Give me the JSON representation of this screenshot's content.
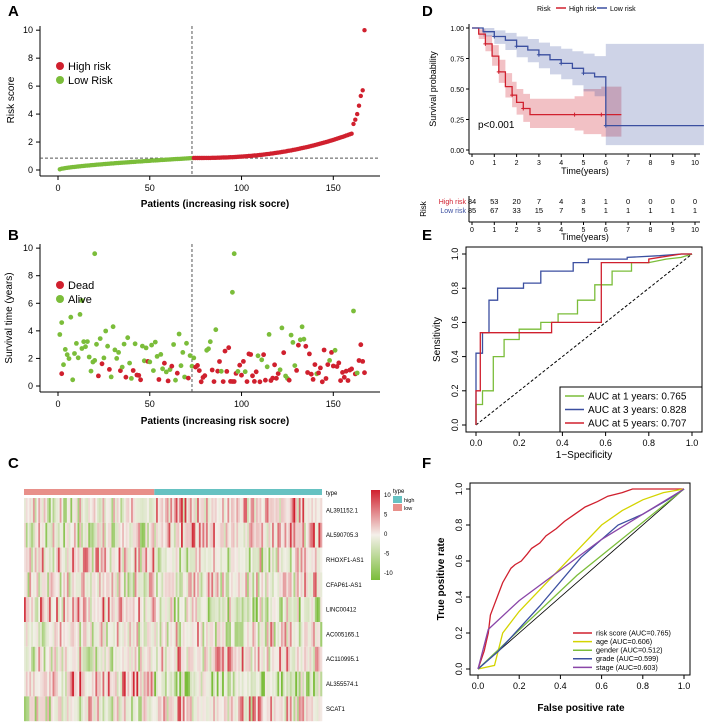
{
  "panel_labels": [
    "A",
    "B",
    "C",
    "D",
    "E",
    "F"
  ],
  "chart_data": [
    {
      "id": "A",
      "type": "scatter",
      "xlabel": "Patients (increasing risk socre)",
      "ylabel": "Risk score",
      "xlim": [
        0,
        170
      ],
      "ylim": [
        0,
        10.3
      ],
      "xticks": [
        0,
        50,
        100,
        150
      ],
      "yticks": [
        0,
        2,
        4,
        6,
        8,
        10
      ],
      "cutoff_x": 73,
      "cutoff_y": 0.85,
      "legend": [
        {
          "name": "High risk",
          "color": "#d0202e"
        },
        {
          "name": "Low Risk",
          "color": "#7bbd3a"
        }
      ],
      "low_count": 73,
      "high_count": 94,
      "low_range": [
        0.05,
        0.85
      ],
      "high_range": [
        0.86,
        2.6
      ],
      "top_values": [
        3.3,
        3.6,
        4.0,
        4.6,
        5.3,
        5.7,
        10.0
      ]
    },
    {
      "id": "B",
      "type": "scatter",
      "xlabel": "Patients (increasing risk socre)",
      "ylabel": "Survival time (years)",
      "xlim": [
        0,
        170
      ],
      "ylim": [
        0,
        10.3
      ],
      "xticks": [
        0,
        50,
        100,
        150
      ],
      "yticks": [
        0,
        2,
        4,
        6,
        8,
        10
      ],
      "cutoff_x": 73,
      "legend": [
        {
          "name": "Dead",
          "color": "#d0202e"
        },
        {
          "name": "Alive",
          "color": "#7bbd3a"
        }
      ],
      "highlights": [
        [
          20,
          9.6
        ],
        [
          96,
          9.6
        ],
        [
          95,
          6.8
        ],
        [
          13,
          6.2
        ],
        [
          2,
          4.6
        ]
      ]
    },
    {
      "id": "C",
      "type": "heatmap",
      "genes": [
        "AL391152.1",
        "AL590705.3",
        "RHOXF1-AS1",
        "CFAP61-AS1",
        "LINC00412",
        "AC005165.1",
        "AC110995.1",
        "AL355574.1",
        "SCAT1"
      ],
      "n_low": 73,
      "n_high": 94,
      "scale_ticks": [
        "10",
        "5",
        "0",
        "-5",
        "-10"
      ],
      "annotation_title": "type",
      "legend_title": "type",
      "legend": [
        {
          "name": "high",
          "color": "#66c2c2"
        },
        {
          "name": "low",
          "color": "#e8908a"
        }
      ],
      "colors": {
        "high": "#d0202e",
        "mid": "#f4f0ea",
        "low": "#7bbd3a"
      }
    },
    {
      "id": "D",
      "type": "line",
      "xlabel": "Time(years)",
      "ylabel": "Survival probability",
      "xlim": [
        0,
        10.4
      ],
      "ylim": [
        0,
        1.0
      ],
      "xticks": [
        0,
        1,
        2,
        3,
        4,
        5,
        6,
        7,
        8,
        9,
        10
      ],
      "yticks": [
        "0.00",
        "0.25",
        "0.50",
        "0.75",
        "1.00"
      ],
      "legend_title": "Risk",
      "pvalue": "p<0.001",
      "series": [
        {
          "name": "High risk",
          "color": "#d0202e",
          "x": [
            0,
            0.3,
            0.6,
            0.9,
            1.2,
            1.5,
            1.8,
            2.0,
            2.3,
            2.6,
            4.6,
            5.0,
            5.8,
            6.7
          ],
          "y": [
            1.0,
            0.95,
            0.87,
            0.77,
            0.64,
            0.52,
            0.45,
            0.39,
            0.34,
            0.29,
            0.29,
            0.29,
            0.29,
            0.29
          ],
          "lower": [
            1.0,
            0.91,
            0.81,
            0.69,
            0.55,
            0.43,
            0.35,
            0.29,
            0.23,
            0.18,
            0.16,
            0.13,
            0.11,
            0.11
          ],
          "upper": [
            1.0,
            0.99,
            0.94,
            0.86,
            0.74,
            0.63,
            0.56,
            0.5,
            0.46,
            0.42,
            0.44,
            0.5,
            0.52,
            0.52
          ]
        },
        {
          "name": "Low risk",
          "color": "#3b4fa0",
          "x": [
            0,
            0.5,
            1.0,
            1.5,
            2.0,
            2.5,
            3.0,
            3.5,
            4.0,
            4.5,
            5.0,
            5.5,
            6.0,
            10.4
          ],
          "y": [
            1.0,
            0.97,
            0.93,
            0.9,
            0.85,
            0.82,
            0.78,
            0.74,
            0.71,
            0.67,
            0.63,
            0.6,
            0.2,
            0.2
          ],
          "lower": [
            1.0,
            0.93,
            0.87,
            0.82,
            0.76,
            0.72,
            0.67,
            0.62,
            0.58,
            0.53,
            0.48,
            0.44,
            0.04,
            0.04
          ],
          "upper": [
            1.0,
            1.0,
            0.98,
            0.96,
            0.93,
            0.91,
            0.88,
            0.85,
            0.83,
            0.81,
            0.79,
            0.77,
            0.87,
            0.87
          ]
        }
      ],
      "risk_table": {
        "ylabel": "Risk",
        "xlabel": "Time(years)",
        "xticks": [
          0,
          1,
          2,
          3,
          4,
          5,
          6,
          7,
          8,
          9,
          10
        ],
        "rows": [
          {
            "name": "High risk",
            "color": "#d0202e",
            "values": [
              "84",
              "53",
              "20",
              "7",
              "4",
              "3",
              "1",
              "0",
              "0",
              "0",
              "0"
            ]
          },
          {
            "name": "Low risk",
            "color": "#3b4fa0",
            "values": [
              "85",
              "67",
              "33",
              "15",
              "7",
              "5",
              "1",
              "1",
              "1",
              "1",
              "1"
            ]
          }
        ]
      }
    },
    {
      "id": "E",
      "type": "line",
      "xlabel": "1−Specificity",
      "ylabel": "Sensitivity",
      "xlim": [
        0,
        1
      ],
      "ylim": [
        0,
        1
      ],
      "ticks": [
        "0.0",
        "0.2",
        "0.4",
        "0.6",
        "0.8",
        "1.0"
      ],
      "series": [
        {
          "name": "AUC at 1 years: 0.765",
          "color": "#7bbd3a",
          "x": [
            0,
            0,
            0.03,
            0.03,
            0.08,
            0.08,
            0.13,
            0.13,
            0.2,
            0.2,
            0.3,
            0.3,
            0.38,
            0.38,
            0.47,
            0.47,
            0.55,
            0.55,
            0.63,
            0.63,
            0.72,
            0.72,
            0.8,
            0.88,
            0.95,
            1.0
          ],
          "y": [
            0,
            0.12,
            0.12,
            0.2,
            0.2,
            0.4,
            0.4,
            0.5,
            0.5,
            0.56,
            0.56,
            0.6,
            0.6,
            0.65,
            0.65,
            0.73,
            0.73,
            0.82,
            0.82,
            0.9,
            0.9,
            0.95,
            0.95,
            0.97,
            0.98,
            1.0
          ]
        },
        {
          "name": "AUC at 3 years: 0.828",
          "color": "#3b4fa0",
          "x": [
            0,
            0,
            0.03,
            0.03,
            0.06,
            0.06,
            0.1,
            0.1,
            0.22,
            0.22,
            0.3,
            0.3,
            0.45,
            0.45,
            0.52,
            0.52,
            0.7,
            0.7,
            0.85,
            0.95,
            1.0
          ],
          "y": [
            0,
            0.42,
            0.42,
            0.54,
            0.54,
            0.73,
            0.73,
            0.8,
            0.8,
            0.83,
            0.83,
            0.9,
            0.9,
            0.95,
            0.95,
            0.97,
            0.97,
            0.98,
            0.99,
            1.0,
            1.0
          ]
        },
        {
          "name": "AUC at 5 years: 0.707",
          "color": "#d0202e",
          "x": [
            0,
            0,
            0.02,
            0.02,
            0.35,
            0.35,
            0.58,
            0.58,
            0.8,
            0.8,
            0.95,
            1.0
          ],
          "y": [
            0,
            0.2,
            0.2,
            0.54,
            0.54,
            0.6,
            0.6,
            0.95,
            0.95,
            0.97,
            1.0,
            1.0
          ]
        }
      ]
    },
    {
      "id": "F",
      "type": "line",
      "xlabel": "False positive rate",
      "ylabel": "True positive rate",
      "xlim": [
        0,
        1
      ],
      "ylim": [
        0,
        1
      ],
      "ticks": [
        "0.0",
        "0.2",
        "0.4",
        "0.6",
        "0.8",
        "1.0"
      ],
      "series": [
        {
          "name": "risk score (AUC=0.765)",
          "color": "#d0202e",
          "x": [
            0,
            0.03,
            0.04,
            0.05,
            0.06,
            0.08,
            0.1,
            0.12,
            0.14,
            0.16,
            0.18,
            0.21,
            0.24,
            0.26,
            0.3,
            0.33,
            0.38,
            0.42,
            0.47,
            0.52,
            0.58,
            0.63,
            0.7,
            0.75,
            0.83,
            0.9,
            0.95,
            1.0
          ],
          "y": [
            0,
            0.1,
            0.15,
            0.2,
            0.3,
            0.36,
            0.42,
            0.48,
            0.52,
            0.56,
            0.58,
            0.6,
            0.64,
            0.67,
            0.7,
            0.74,
            0.78,
            0.82,
            0.86,
            0.9,
            0.93,
            0.96,
            0.98,
            1.0,
            1.0,
            1.0,
            1.0,
            1.0
          ]
        },
        {
          "name": "age (AUC=0.606)",
          "color": "#d4d400",
          "x": [
            0,
            0.08,
            0.12,
            0.2,
            0.3,
            0.4,
            0.5,
            0.6,
            0.7,
            0.8,
            0.9,
            1.0
          ],
          "y": [
            0,
            0.02,
            0.2,
            0.32,
            0.44,
            0.56,
            0.68,
            0.8,
            0.88,
            0.94,
            0.98,
            1.0
          ]
        },
        {
          "name": "gender (AUC=0.512)",
          "color": "#7bbd3a",
          "x": [
            0,
            0.48,
            1.0
          ],
          "y": [
            0,
            0.52,
            1.0
          ]
        },
        {
          "name": "grade (AUC=0.599)",
          "color": "#3b4fa0",
          "x": [
            0,
            0.1,
            0.3,
            0.5,
            0.68,
            0.8,
            0.92,
            1.0
          ],
          "y": [
            0,
            0.1,
            0.35,
            0.62,
            0.8,
            0.86,
            0.94,
            1.0
          ]
        },
        {
          "name": "stage (AUC=0.603)",
          "color": "#8a46a8",
          "x": [
            0,
            0.05,
            0.2,
            0.4,
            0.6,
            0.8,
            1.0
          ],
          "y": [
            0,
            0.22,
            0.38,
            0.55,
            0.72,
            0.86,
            1.0
          ]
        }
      ]
    }
  ]
}
